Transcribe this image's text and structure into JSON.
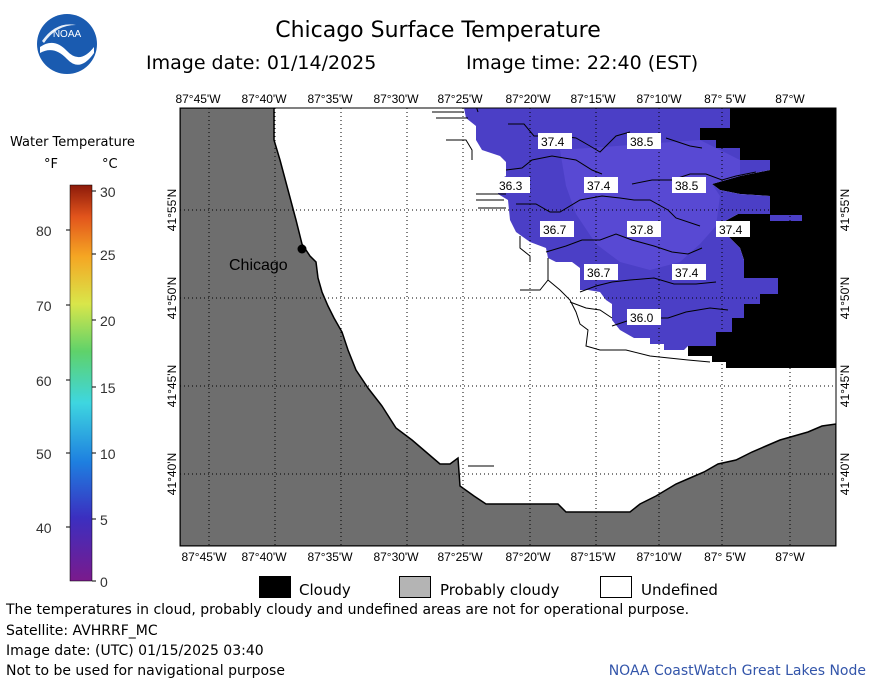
{
  "header": {
    "title": "Chicago Surface Temperature",
    "image_date": "Image date: 01/14/2025",
    "image_time": "Image time: 22:40 (EST)",
    "logo_text": "NOAA"
  },
  "scale": {
    "title": "Water Temperature",
    "unit_f": "°F",
    "unit_c": "°C",
    "f_ticks": [
      "80",
      "70",
      "60",
      "50",
      "40"
    ],
    "c_ticks": [
      "30",
      "25",
      "20",
      "15",
      "10",
      "5",
      "0"
    ]
  },
  "axes": {
    "lon_labels": [
      "87°45'W",
      "87°40'W",
      "87°35'W",
      "87°30'W",
      "87°25'W",
      "87°20'W",
      "87°15'W",
      "87°10'W",
      "87° 5'W",
      "87°W"
    ],
    "lat_labels": [
      "41°55'N",
      "41°50'N",
      "41°45'N",
      "41°40'N"
    ]
  },
  "map": {
    "city_label": "Chicago",
    "temperatures": [
      "37.4",
      "38.5",
      "36.3",
      "37.4",
      "38.5",
      "36.7",
      "37.8",
      "37.4",
      "36.7",
      "37.4",
      "36.0"
    ],
    "colors": {
      "land": "#6e6e6e",
      "water_undefined": "#ffffff",
      "cloud": "#000000",
      "water_temp": "#4a3fc6",
      "water_temp_light": "#5948d2"
    }
  },
  "legend": {
    "cloudy": "Cloudy",
    "probably_cloudy": "Probably cloudy",
    "undefined": "Undefined"
  },
  "footer": {
    "note": "The temperatures in cloud, probably cloudy and undefined areas are not for operational purpose.",
    "satellite": "Satellite: AVHRRF_MC",
    "utc_date": "Image date: (UTC) 01/15/2025  03:40",
    "navigation": "Not to be used for navigational purpose",
    "credit": "NOAA CoastWatch Great Lakes Node"
  }
}
